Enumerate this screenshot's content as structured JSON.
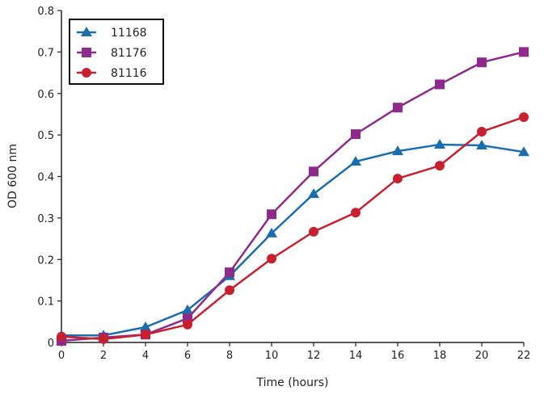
{
  "chart_data": {
    "type": "line",
    "title": "",
    "xlabel": "Time (hours)",
    "ylabel": "OD 600 nm",
    "xlim": [
      0,
      22
    ],
    "ylim": [
      0,
      0.8
    ],
    "grid": false,
    "legend_placement": "top-left",
    "x": [
      0,
      2,
      4,
      6,
      8,
      10,
      12,
      14,
      16,
      18,
      20,
      22
    ],
    "xticks": [
      "0",
      "2",
      "4",
      "6",
      "8",
      "10",
      "12",
      "14",
      "16",
      "18",
      "20",
      "22"
    ],
    "yticks": [
      "0",
      "0.1",
      "0.2",
      "0.3",
      "0.4",
      "0.5",
      "0.6",
      "0.7",
      "0.8"
    ],
    "series": [
      {
        "name": "11168",
        "color": "#1b6eae",
        "marker": "triangle",
        "values": [
          0.017,
          0.017,
          0.037,
          0.078,
          0.16,
          0.263,
          0.358,
          0.436,
          0.461,
          0.477,
          0.475,
          0.459
        ]
      },
      {
        "name": "81176",
        "color": "#8e2a8c",
        "marker": "square",
        "values": [
          0.004,
          0.012,
          0.019,
          0.058,
          0.169,
          0.309,
          0.412,
          0.502,
          0.566,
          0.622,
          0.675,
          0.7
        ]
      },
      {
        "name": "81116",
        "color": "#c8202e",
        "marker": "circle",
        "values": [
          0.014,
          0.008,
          0.019,
          0.043,
          0.126,
          0.202,
          0.267,
          0.313,
          0.395,
          0.426,
          0.508,
          0.543
        ]
      }
    ]
  }
}
